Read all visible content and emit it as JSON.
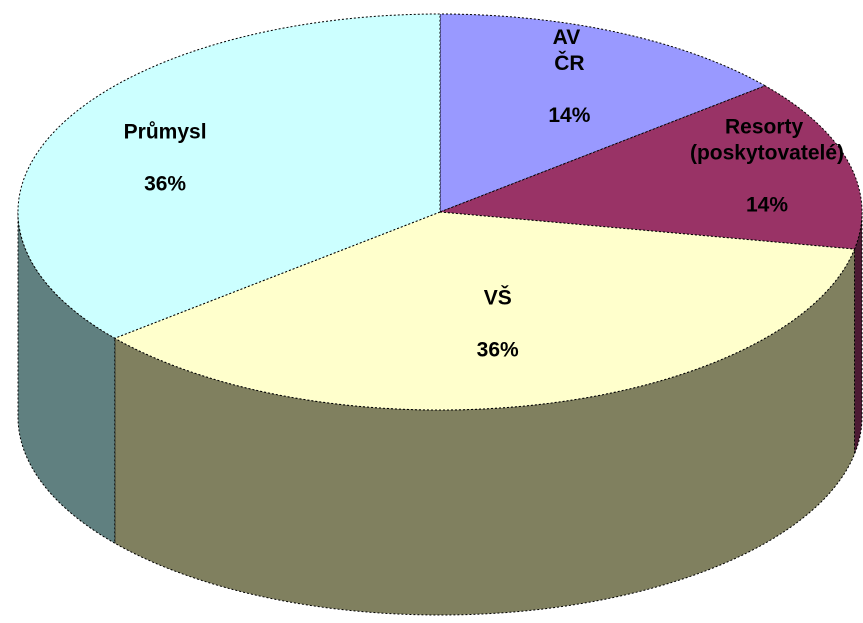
{
  "chart_data": {
    "type": "pie3d",
    "categories": [
      "AV ČR",
      "Resorty (poskytovatelé)",
      "VŠ",
      "Průmysl"
    ],
    "values": [
      14,
      14,
      36,
      36
    ],
    "value_labels": [
      "14%",
      "14%",
      "36%",
      "36%"
    ],
    "colors": [
      "#9999ff",
      "#993366",
      "#ffffcc",
      "#ccffff"
    ],
    "side_colors": [
      "#4d4d80",
      "#4c1a33",
      "#80805f",
      "#608080"
    ]
  }
}
